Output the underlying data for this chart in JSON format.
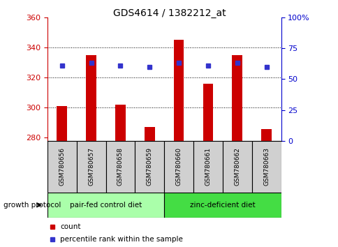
{
  "title": "GDS4614 / 1382212_at",
  "samples": [
    "GSM780656",
    "GSM780657",
    "GSM780658",
    "GSM780659",
    "GSM780660",
    "GSM780661",
    "GSM780662",
    "GSM780663"
  ],
  "bar_values": [
    301,
    335,
    302,
    287,
    345,
    316,
    335,
    286
  ],
  "dot_values": [
    328,
    330,
    328,
    327,
    330,
    328,
    330,
    327
  ],
  "bar_bottom": 278,
  "ylim": [
    278,
    360
  ],
  "ylim_right": [
    0,
    100
  ],
  "yticks_left": [
    280,
    300,
    320,
    340,
    360
  ],
  "yticks_right": [
    0,
    25,
    50,
    75,
    100
  ],
  "grid_values": [
    300,
    320,
    340
  ],
  "bar_color": "#cc0000",
  "dot_color": "#3333cc",
  "group1_label": "pair-fed control diet",
  "group2_label": "zinc-deficient diet",
  "group1_color": "#aaffaa",
  "group2_color": "#44dd44",
  "group_label_prefix": "growth protocol",
  "legend_bar_label": "count",
  "legend_dot_label": "percentile rank within the sample",
  "title_color": "#000000",
  "left_tick_color": "#cc0000",
  "right_tick_color": "#0000cc",
  "sample_bg_color": "#d0d0d0",
  "bar_width": 0.35,
  "dot_size": 4
}
